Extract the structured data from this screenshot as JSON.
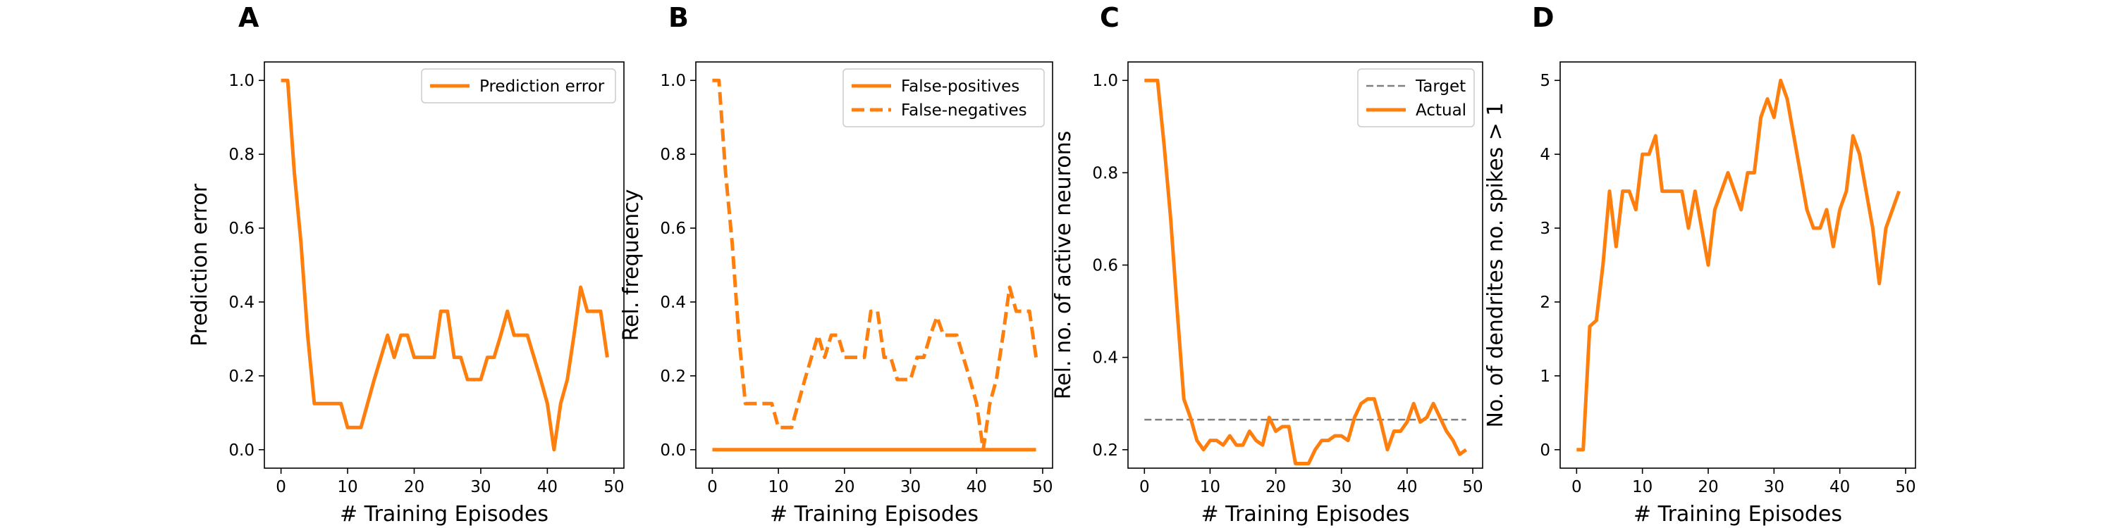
{
  "colors": {
    "series": "#ff7f0e",
    "target": "#808080",
    "axis": "#000000",
    "legend_border": "#cccccc"
  },
  "chart_data": [
    {
      "panel_label": "A",
      "type": "line",
      "xlabel": "# Training Episodes",
      "ylabel": "Prediction error",
      "xlim": [
        -2.5,
        51.5
      ],
      "ylim": [
        -0.05,
        1.05
      ],
      "xticks": [
        0,
        10,
        20,
        30,
        40,
        50
      ],
      "yticks": [
        0.0,
        0.2,
        0.4,
        0.6,
        0.8,
        1.0
      ],
      "ytick_labels": [
        "0.0",
        "0.2",
        "0.4",
        "0.6",
        "0.8",
        "1.0"
      ],
      "grid": false,
      "legend_position": "top-right",
      "series": [
        {
          "name": "Prediction error",
          "style": "solid",
          "x": [
            0,
            1,
            2,
            3,
            4,
            5,
            6,
            7,
            8,
            9,
            10,
            11,
            12,
            13,
            14,
            15,
            16,
            17,
            18,
            19,
            20,
            21,
            22,
            23,
            24,
            25,
            26,
            27,
            28,
            29,
            30,
            31,
            32,
            33,
            34,
            35,
            36,
            37,
            38,
            39,
            40,
            41,
            42,
            43,
            44,
            45,
            46,
            47,
            48,
            49
          ],
          "y": [
            1.0,
            1.0,
            0.75,
            0.56,
            0.31,
            0.125,
            0.125,
            0.125,
            0.125,
            0.125,
            0.06,
            0.06,
            0.06,
            0.125,
            0.19,
            0.25,
            0.31,
            0.25,
            0.31,
            0.31,
            0.25,
            0.25,
            0.25,
            0.25,
            0.375,
            0.375,
            0.25,
            0.25,
            0.19,
            0.19,
            0.19,
            0.25,
            0.25,
            0.31,
            0.375,
            0.31,
            0.31,
            0.31,
            0.25,
            0.19,
            0.125,
            0.0,
            0.125,
            0.19,
            0.31,
            0.44,
            0.375,
            0.375,
            0.375,
            0.25
          ]
        }
      ]
    },
    {
      "panel_label": "B",
      "type": "line",
      "xlabel": "# Training Episodes",
      "ylabel": "Rel. frequency",
      "xlim": [
        -2.5,
        51.5
      ],
      "ylim": [
        -0.05,
        1.05
      ],
      "xticks": [
        0,
        10,
        20,
        30,
        40,
        50
      ],
      "yticks": [
        0.0,
        0.2,
        0.4,
        0.6,
        0.8,
        1.0
      ],
      "ytick_labels": [
        "0.0",
        "0.2",
        "0.4",
        "0.6",
        "0.8",
        "1.0"
      ],
      "grid": false,
      "legend_position": "top-right",
      "series": [
        {
          "name": "False-positives",
          "style": "solid",
          "x": [
            0,
            1,
            2,
            3,
            4,
            5,
            6,
            7,
            8,
            9,
            10,
            11,
            12,
            13,
            14,
            15,
            16,
            17,
            18,
            19,
            20,
            21,
            22,
            23,
            24,
            25,
            26,
            27,
            28,
            29,
            30,
            31,
            32,
            33,
            34,
            35,
            36,
            37,
            38,
            39,
            40,
            41,
            42,
            43,
            44,
            45,
            46,
            47,
            48,
            49
          ],
          "y": [
            0,
            0,
            0,
            0,
            0,
            0,
            0,
            0,
            0,
            0,
            0,
            0,
            0,
            0,
            0,
            0,
            0,
            0,
            0,
            0,
            0,
            0,
            0,
            0,
            0,
            0,
            0,
            0,
            0,
            0,
            0,
            0,
            0,
            0,
            0,
            0,
            0,
            0,
            0,
            0,
            0,
            0,
            0,
            0,
            0,
            0,
            0,
            0,
            0,
            0
          ]
        },
        {
          "name": "False-negatives",
          "style": "dashed",
          "x": [
            0,
            1,
            2,
            3,
            4,
            5,
            6,
            7,
            8,
            9,
            10,
            11,
            12,
            13,
            14,
            15,
            16,
            17,
            18,
            19,
            20,
            21,
            22,
            23,
            24,
            25,
            26,
            27,
            28,
            29,
            30,
            31,
            32,
            33,
            34,
            35,
            36,
            37,
            38,
            39,
            40,
            41,
            42,
            43,
            44,
            45,
            46,
            47,
            48,
            49
          ],
          "y": [
            1.0,
            1.0,
            0.75,
            0.56,
            0.31,
            0.125,
            0.125,
            0.125,
            0.125,
            0.125,
            0.06,
            0.06,
            0.06,
            0.125,
            0.19,
            0.25,
            0.31,
            0.25,
            0.31,
            0.31,
            0.25,
            0.25,
            0.25,
            0.25,
            0.375,
            0.375,
            0.25,
            0.25,
            0.19,
            0.19,
            0.19,
            0.25,
            0.25,
            0.31,
            0.36,
            0.31,
            0.31,
            0.31,
            0.25,
            0.19,
            0.125,
            0.0,
            0.125,
            0.19,
            0.31,
            0.44,
            0.375,
            0.375,
            0.375,
            0.25
          ]
        }
      ]
    },
    {
      "panel_label": "C",
      "type": "line",
      "xlabel": "# Training Episodes",
      "ylabel": "Rel. no. of active neurons",
      "xlim": [
        -2.5,
        51.5
      ],
      "ylim": [
        0.16,
        1.04
      ],
      "xticks": [
        0,
        10,
        20,
        30,
        40,
        50
      ],
      "yticks": [
        0.2,
        0.4,
        0.6,
        0.8,
        1.0
      ],
      "ytick_labels": [
        "0.2",
        "0.4",
        "0.6",
        "0.8",
        "1.0"
      ],
      "grid": false,
      "legend_position": "top-right",
      "series": [
        {
          "name": "Target",
          "style": "dashed-thin",
          "x": [
            0,
            49
          ],
          "y": [
            0.265,
            0.265
          ]
        },
        {
          "name": "Actual",
          "style": "solid",
          "x": [
            0,
            1,
            2,
            3,
            4,
            5,
            6,
            7,
            8,
            9,
            10,
            11,
            12,
            13,
            14,
            15,
            16,
            17,
            18,
            19,
            20,
            21,
            22,
            23,
            24,
            25,
            26,
            27,
            28,
            29,
            30,
            31,
            32,
            33,
            34,
            35,
            36,
            37,
            38,
            39,
            40,
            41,
            42,
            43,
            44,
            45,
            46,
            47,
            48,
            49
          ],
          "y": [
            1.0,
            1.0,
            1.0,
            0.86,
            0.7,
            0.5,
            0.31,
            0.27,
            0.22,
            0.2,
            0.22,
            0.22,
            0.21,
            0.23,
            0.21,
            0.21,
            0.24,
            0.22,
            0.21,
            0.27,
            0.24,
            0.25,
            0.25,
            0.17,
            0.17,
            0.17,
            0.2,
            0.22,
            0.22,
            0.23,
            0.23,
            0.22,
            0.27,
            0.3,
            0.31,
            0.31,
            0.26,
            0.2,
            0.24,
            0.24,
            0.26,
            0.3,
            0.26,
            0.27,
            0.3,
            0.27,
            0.24,
            0.22,
            0.19,
            0.2
          ]
        }
      ]
    },
    {
      "panel_label": "D",
      "type": "line",
      "xlabel": "# Training Episodes",
      "ylabel": "No. of dendrites no. spikes > 1",
      "xlim": [
        -2.5,
        51.5
      ],
      "ylim": [
        -0.25,
        5.25
      ],
      "xticks": [
        0,
        10,
        20,
        30,
        40,
        50
      ],
      "yticks": [
        0,
        1,
        2,
        3,
        4,
        5
      ],
      "ytick_labels": [
        "0",
        "1",
        "2",
        "3",
        "4",
        "5"
      ],
      "grid": false,
      "legend_position": "none",
      "series": [
        {
          "style": "solid",
          "x": [
            0,
            1,
            2,
            3,
            4,
            5,
            6,
            7,
            8,
            9,
            10,
            11,
            12,
            13,
            14,
            15,
            16,
            17,
            18,
            19,
            20,
            21,
            22,
            23,
            24,
            25,
            26,
            27,
            28,
            29,
            30,
            31,
            32,
            33,
            34,
            35,
            36,
            37,
            38,
            39,
            40,
            41,
            42,
            43,
            44,
            45,
            46,
            47,
            48,
            49
          ],
          "y": [
            0,
            0,
            1.67,
            1.75,
            2.5,
            3.5,
            2.75,
            3.5,
            3.5,
            3.25,
            4.0,
            4.0,
            4.25,
            3.5,
            3.5,
            3.5,
            3.5,
            3.0,
            3.5,
            3.0,
            2.5,
            3.25,
            3.5,
            3.75,
            3.5,
            3.25,
            3.75,
            3.75,
            4.5,
            4.75,
            4.5,
            5.0,
            4.75,
            4.25,
            3.75,
            3.25,
            3.0,
            3.0,
            3.25,
            2.75,
            3.25,
            3.5,
            4.25,
            4.0,
            3.5,
            3.0,
            2.25,
            3.0,
            3.25,
            3.5
          ]
        }
      ]
    }
  ]
}
